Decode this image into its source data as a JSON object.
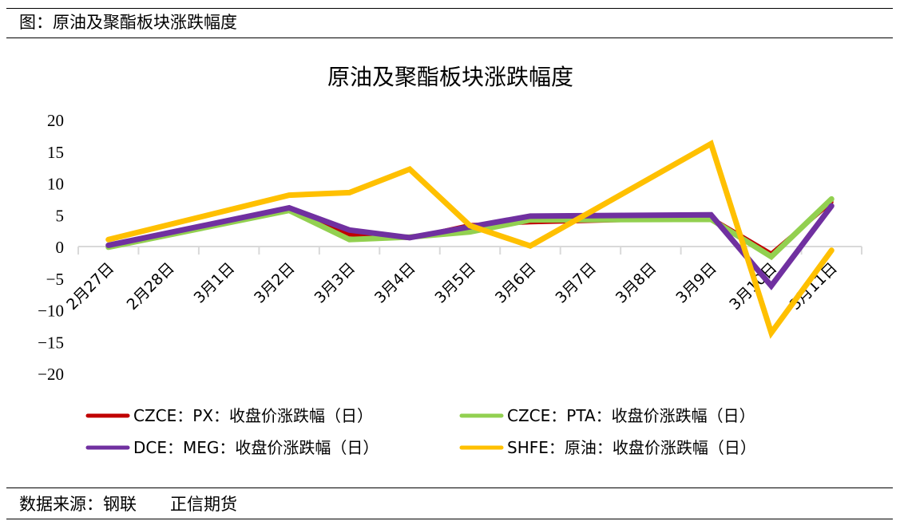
{
  "figure_caption": "图：原油及聚酯板块涨跌幅度",
  "source_caption": "数据来源：钢联　　正信期货",
  "chart_data": {
    "type": "line",
    "title": "原油及聚酯板块涨跌幅度",
    "xlabel": "",
    "ylabel": "",
    "ylim": [
      -20,
      20
    ],
    "yticks": [
      20,
      15,
      10,
      5,
      0,
      -5,
      -10,
      -15,
      -20
    ],
    "grid": false,
    "legend_position": "bottom",
    "categories": [
      "2月27日",
      "2月28日",
      "3月1日",
      "3月2日",
      "3月3日",
      "3月4日",
      "3月5日",
      "3月6日",
      "3月7日",
      "3月8日",
      "3月9日",
      "3月10日",
      "3月11日"
    ],
    "series": [
      {
        "name": "CZCE：PX：收盘价涨跌幅（日）",
        "color": "#C00000",
        "values": [
          0.1,
          null,
          null,
          5.9,
          1.9,
          1.3,
          3.4,
          3.8,
          null,
          null,
          4.5,
          -1.1,
          7.0
        ]
      },
      {
        "name": "CZCE：PTA：收盘价涨跌幅（日）",
        "color": "#92D050",
        "values": [
          -0.1,
          null,
          null,
          5.7,
          1.1,
          1.5,
          2.3,
          4.2,
          null,
          null,
          4.3,
          -1.6,
          7.5
        ]
      },
      {
        "name": "DCE：MEG：收盘价涨跌幅（日）",
        "color": "#7030A0",
        "values": [
          0.2,
          null,
          null,
          6.1,
          2.6,
          1.4,
          3.1,
          4.8,
          null,
          null,
          5.0,
          -6.2,
          6.4
        ]
      },
      {
        "name": "SHFE：原油：收盘价涨跌幅（日）",
        "color": "#FFC000",
        "values": [
          1.1,
          null,
          null,
          8.1,
          8.5,
          12.2,
          3.3,
          0.1,
          null,
          null,
          16.2,
          -13.6,
          -0.6
        ]
      }
    ],
    "draw_order": [
      0,
      1,
      2,
      3
    ]
  }
}
